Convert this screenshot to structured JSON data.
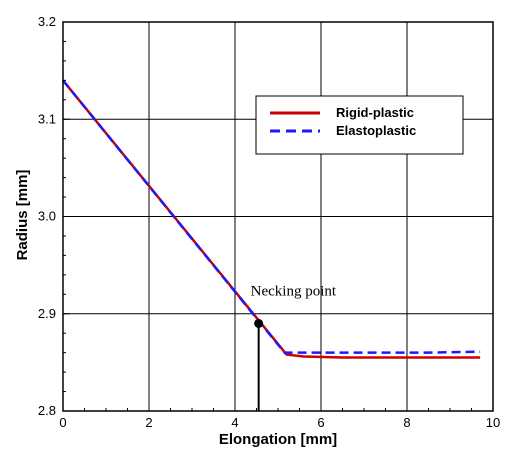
{
  "chart_data": {
    "type": "line",
    "xlabel": "Elongation [mm]",
    "ylabel": "Radius [mm]",
    "xlim": [
      0,
      10
    ],
    "ylim": [
      2.8,
      3.2
    ],
    "x_ticks": [
      "0",
      "2",
      "4",
      "6",
      "8",
      "10"
    ],
    "y_ticks": [
      "2.8",
      "2.9",
      "3.0",
      "3.1",
      "3.2"
    ],
    "grid": true,
    "legend_position": "top-right",
    "series": [
      {
        "name": "Rigid-plastic",
        "color": "#cc0000",
        "style": "solid",
        "x": [
          0,
          5.2,
          5.6,
          6.5,
          7.5,
          8.5,
          9.7
        ],
        "y": [
          3.14,
          2.858,
          2.856,
          2.855,
          2.855,
          2.855,
          2.855
        ]
      },
      {
        "name": "Elastoplastic",
        "color": "#1a1aff",
        "style": "dashed",
        "x": [
          0,
          5.15,
          5.5,
          6.5,
          7.5,
          8.5,
          9.7
        ],
        "y": [
          3.14,
          2.86,
          2.86,
          2.86,
          2.86,
          2.86,
          2.861
        ]
      }
    ],
    "annotation": {
      "text": "Necking point",
      "x": 4.55,
      "y": 2.89
    }
  }
}
